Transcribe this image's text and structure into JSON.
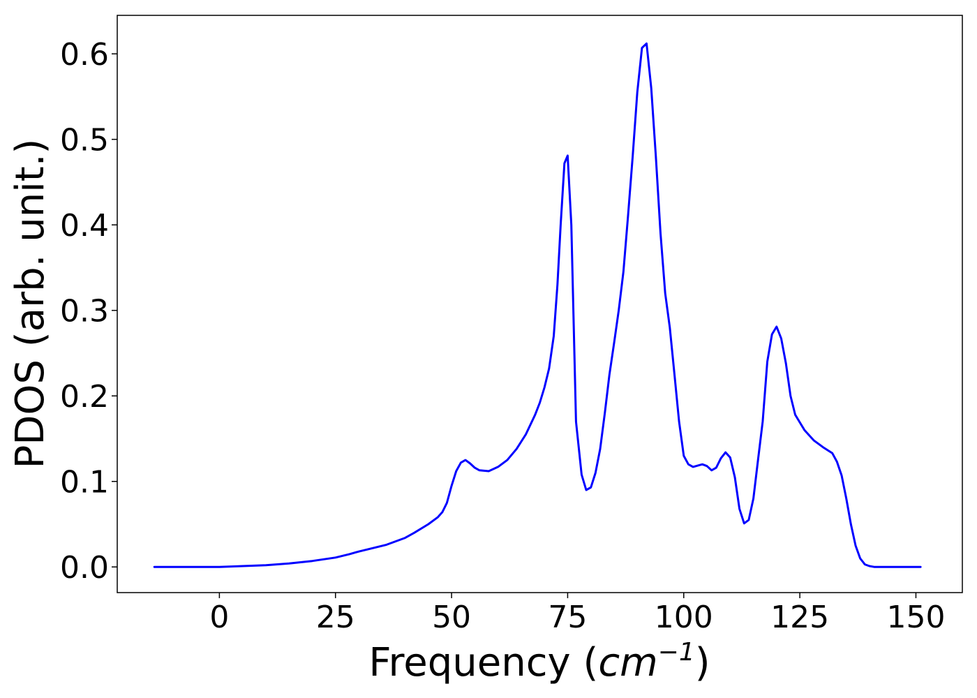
{
  "chart_data": {
    "type": "line",
    "title": "",
    "xlabel": {
      "prefix": "Frequency (",
      "unit_base": "cm",
      "unit_exp": "−1",
      "suffix": ")"
    },
    "ylabel": "PDOS (arb. unit.)",
    "xlim": [
      -22,
      160
    ],
    "ylim": [
      -0.03,
      0.645
    ],
    "xticks": [
      0,
      25,
      50,
      75,
      100,
      125,
      150
    ],
    "xtick_labels": [
      "0",
      "25",
      "50",
      "75",
      "100",
      "125",
      "150"
    ],
    "yticks": [
      0.0,
      0.1,
      0.2,
      0.3,
      0.4,
      0.5,
      0.6
    ],
    "ytick_labels": [
      "0.0",
      "0.1",
      "0.2",
      "0.3",
      "0.4",
      "0.5",
      "0.6"
    ],
    "grid": false,
    "series": [
      {
        "color": "#0000ff",
        "x": [
          -14,
          0,
          5,
          10,
          15,
          20,
          25,
          28,
          30,
          33,
          36,
          40,
          42,
          45,
          47,
          48,
          49,
          50,
          51,
          52,
          53,
          54,
          55,
          56,
          58,
          60,
          62,
          64,
          66,
          68,
          69,
          70,
          71,
          72,
          72.8,
          73.5,
          74.3,
          75,
          75.8,
          76.8,
          78,
          79,
          80,
          81,
          82,
          83,
          84,
          85,
          86,
          87,
          88,
          89,
          90,
          91,
          92,
          93,
          94,
          95,
          96,
          97,
          98,
          99,
          100,
          101,
          102,
          104,
          105,
          106,
          107,
          108,
          109,
          110,
          111,
          112,
          113,
          114,
          115,
          116,
          117,
          118,
          119,
          120,
          121,
          122,
          123,
          124,
          126,
          128,
          130,
          132,
          133,
          134,
          135,
          136,
          137,
          138,
          139,
          140,
          141,
          143,
          151
        ],
        "y": [
          0,
          0,
          0.001,
          0.002,
          0.004,
          0.007,
          0.011,
          0.015,
          0.018,
          0.022,
          0.026,
          0.034,
          0.04,
          0.05,
          0.058,
          0.064,
          0.075,
          0.095,
          0.112,
          0.122,
          0.125,
          0.121,
          0.116,
          0.113,
          0.112,
          0.117,
          0.125,
          0.138,
          0.155,
          0.178,
          0.192,
          0.21,
          0.232,
          0.27,
          0.33,
          0.4,
          0.472,
          0.481,
          0.4,
          0.17,
          0.108,
          0.09,
          0.093,
          0.11,
          0.138,
          0.18,
          0.225,
          0.262,
          0.3,
          0.345,
          0.41,
          0.48,
          0.555,
          0.607,
          0.612,
          0.56,
          0.48,
          0.39,
          0.32,
          0.28,
          0.225,
          0.17,
          0.13,
          0.12,
          0.117,
          0.12,
          0.118,
          0.113,
          0.116,
          0.127,
          0.134,
          0.128,
          0.105,
          0.068,
          0.051,
          0.055,
          0.08,
          0.125,
          0.17,
          0.24,
          0.272,
          0.281,
          0.267,
          0.238,
          0.2,
          0.178,
          0.16,
          0.148,
          0.14,
          0.133,
          0.123,
          0.107,
          0.08,
          0.05,
          0.025,
          0.01,
          0.003,
          0.001,
          0,
          0,
          0
        ]
      }
    ]
  }
}
